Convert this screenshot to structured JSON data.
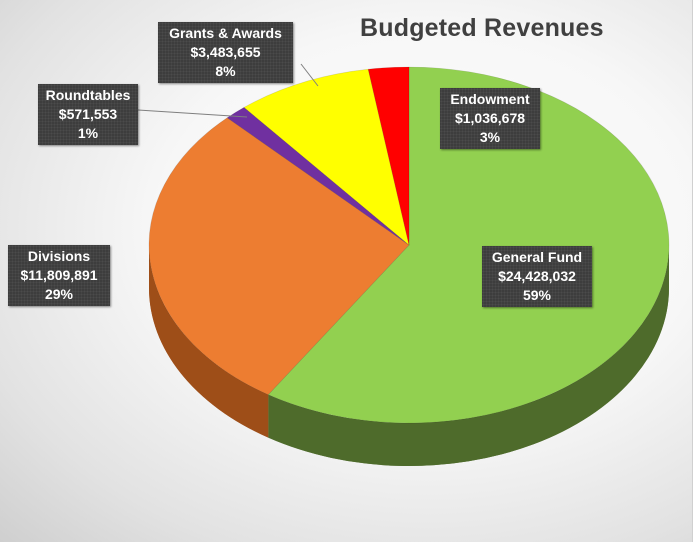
{
  "chart_data": {
    "type": "pie",
    "title": "Budgeted Revenues",
    "slices": [
      {
        "name": "General Fund",
        "value": 24428032,
        "value_label": "$24,428,032",
        "percent_label": "59%",
        "color": "#92d050",
        "side_color": "#4e6b2b"
      },
      {
        "name": "Divisions",
        "value": 11809891,
        "value_label": "$11,809,891",
        "percent_label": "29%",
        "color": "#ed7d31",
        "side_color": "#9e4e18"
      },
      {
        "name": "Roundtables",
        "value": 571553,
        "value_label": "$571,553",
        "percent_label": "1%",
        "color": "#7030a0",
        "side_color": "#3f1a5a"
      },
      {
        "name": "Grants & Awards",
        "value": 3483655,
        "value_label": "$3,483,655",
        "percent_label": "8%",
        "color": "#ffff00",
        "side_color": "#9c9c00"
      },
      {
        "name": "Endowment",
        "value": 1036678,
        "value_label": "$1,036,678",
        "percent_label": "3%",
        "color": "#ff0000",
        "side_color": "#8a0000"
      }
    ],
    "start_angle_deg": 0,
    "direction": "clockwise",
    "style": "3d",
    "legend": "none"
  }
}
